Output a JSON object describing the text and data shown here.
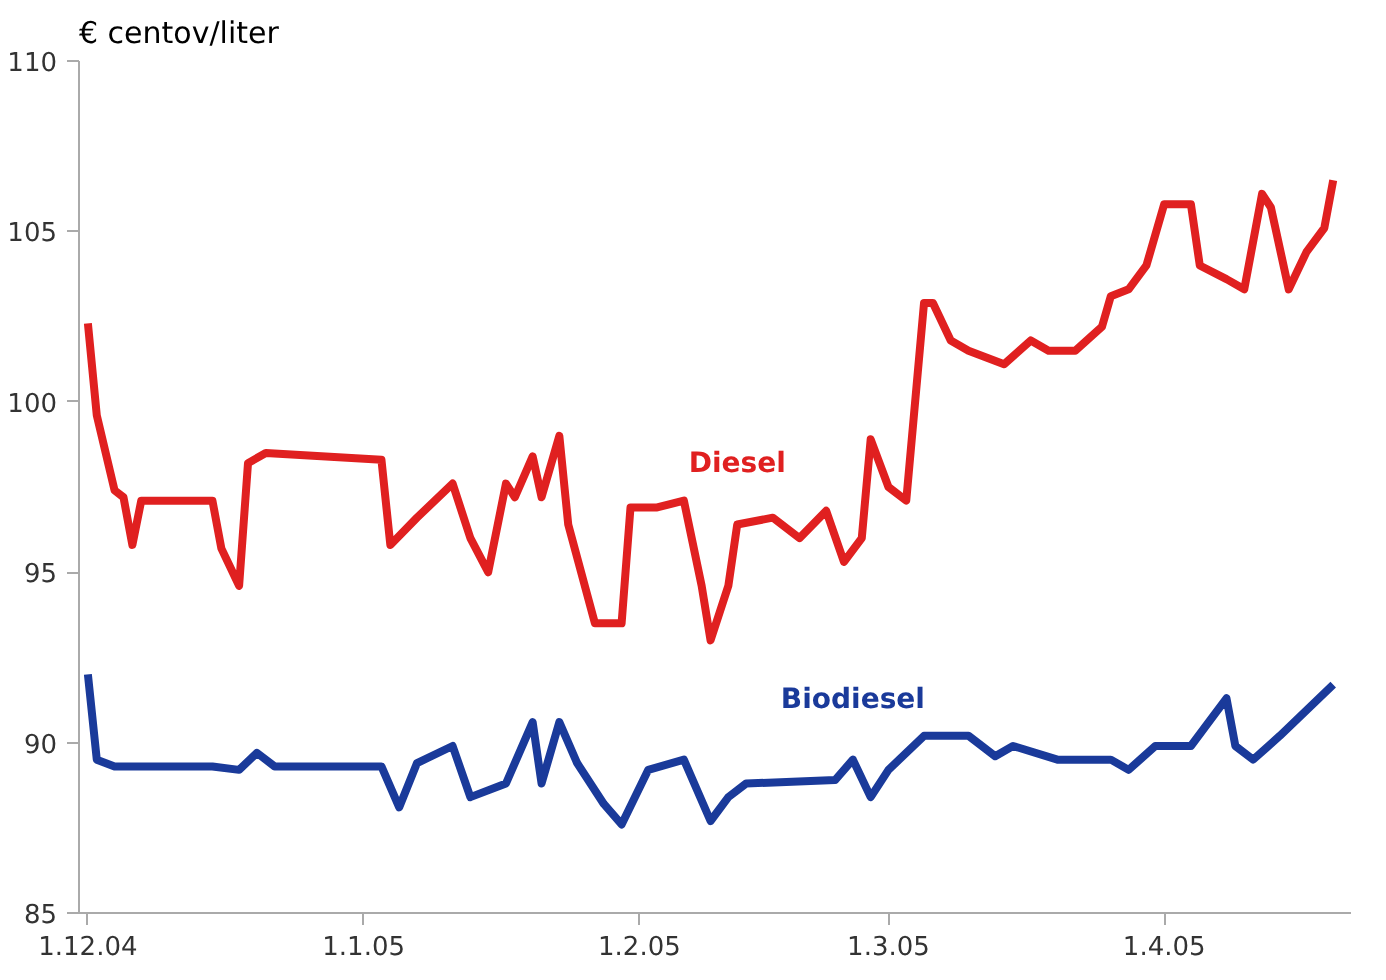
{
  "chart_data": {
    "type": "line",
    "ylabel": "€ centov/liter",
    "xlim": [
      "2004-11-30",
      "2005-04-22"
    ],
    "ylim": [
      85,
      110
    ],
    "yticks": [
      85,
      90,
      95,
      100,
      105,
      110
    ],
    "xticks": [
      {
        "value": "2004-12-01",
        "label": "1.12.04"
      },
      {
        "value": "2005-01-01",
        "label": "1.1.05"
      },
      {
        "value": "2005-02-01",
        "label": "1.2.05"
      },
      {
        "value": "2005-03-01",
        "label": "1.3.05"
      },
      {
        "value": "2005-04-01",
        "label": "1.4.05"
      }
    ],
    "grid": false,
    "marker": "none",
    "line_style": "solid",
    "series": [
      {
        "name": "Diesel",
        "color": "#e02020",
        "x": [
          "2004-12-01",
          "2004-12-02",
          "2004-12-04",
          "2004-12-05",
          "2004-12-06",
          "2004-12-07",
          "2004-12-15",
          "2004-12-16",
          "2004-12-18",
          "2004-12-19",
          "2004-12-21",
          "2005-01-03",
          "2005-01-04",
          "2005-01-07",
          "2005-01-11",
          "2005-01-13",
          "2005-01-15",
          "2005-01-17",
          "2005-01-18",
          "2005-01-20",
          "2005-01-21",
          "2005-01-23",
          "2005-01-24",
          "2005-01-27",
          "2005-01-30",
          "2005-01-31",
          "2005-02-03",
          "2005-02-06",
          "2005-02-08",
          "2005-02-09",
          "2005-02-11",
          "2005-02-12",
          "2005-02-16",
          "2005-02-19",
          "2005-02-22",
          "2005-02-24",
          "2005-02-26",
          "2005-02-27",
          "2005-03-01",
          "2005-03-03",
          "2005-03-05",
          "2005-03-06",
          "2005-03-08",
          "2005-03-10",
          "2005-03-14",
          "2005-03-17",
          "2005-03-19",
          "2005-03-22",
          "2005-03-25",
          "2005-03-26",
          "2005-03-28",
          "2005-03-30",
          "2005-04-01",
          "2005-04-04",
          "2005-04-05",
          "2005-04-08",
          "2005-04-10",
          "2005-04-12",
          "2005-04-13",
          "2005-04-15",
          "2005-04-17",
          "2005-04-19",
          "2005-04-20"
        ],
        "values": [
          102.3,
          99.6,
          97.4,
          97.2,
          95.8,
          97.1,
          97.1,
          95.7,
          94.6,
          98.2,
          98.5,
          98.3,
          95.8,
          96.6,
          97.6,
          96.0,
          95.0,
          97.6,
          97.2,
          98.4,
          97.2,
          99.0,
          96.4,
          93.5,
          93.5,
          96.9,
          96.9,
          97.1,
          94.6,
          93.0,
          94.6,
          96.4,
          96.6,
          96.0,
          96.8,
          95.3,
          96.0,
          98.9,
          97.5,
          97.1,
          102.9,
          102.9,
          101.8,
          101.5,
          101.1,
          101.8,
          101.5,
          101.5,
          102.2,
          103.1,
          103.3,
          104.0,
          105.8,
          105.8,
          104.0,
          103.6,
          103.3,
          106.1,
          105.7,
          103.3,
          104.4,
          105.1,
          106.5
        ]
      },
      {
        "name": "Biodiesel",
        "color": "#1a3a9a",
        "x": [
          "2004-12-01",
          "2004-12-02",
          "2004-12-04",
          "2004-12-15",
          "2004-12-18",
          "2004-12-20",
          "2004-12-22",
          "2005-01-03",
          "2005-01-05",
          "2005-01-07",
          "2005-01-11",
          "2005-01-13",
          "2005-01-17",
          "2005-01-20",
          "2005-01-21",
          "2005-01-23",
          "2005-01-25",
          "2005-01-28",
          "2005-01-30",
          "2005-02-02",
          "2005-02-06",
          "2005-02-09",
          "2005-02-11",
          "2005-02-13",
          "2005-02-23",
          "2005-02-25",
          "2005-02-27",
          "2005-03-01",
          "2005-03-05",
          "2005-03-10",
          "2005-03-13",
          "2005-03-15",
          "2005-03-20",
          "2005-03-26",
          "2005-03-28",
          "2005-03-31",
          "2005-04-04",
          "2005-04-08",
          "2005-04-09",
          "2005-04-11",
          "2005-04-14",
          "2005-04-20"
        ],
        "values": [
          92.0,
          89.5,
          89.3,
          89.3,
          89.2,
          89.7,
          89.3,
          89.3,
          88.1,
          89.4,
          89.9,
          88.4,
          88.8,
          90.6,
          88.8,
          90.6,
          89.4,
          88.2,
          87.6,
          89.2,
          89.5,
          87.7,
          88.4,
          88.8,
          88.9,
          89.5,
          88.4,
          89.2,
          90.2,
          90.2,
          89.6,
          89.9,
          89.5,
          89.5,
          89.2,
          89.9,
          89.9,
          91.3,
          89.9,
          89.5,
          90.2,
          91.7
        ]
      }
    ]
  }
}
